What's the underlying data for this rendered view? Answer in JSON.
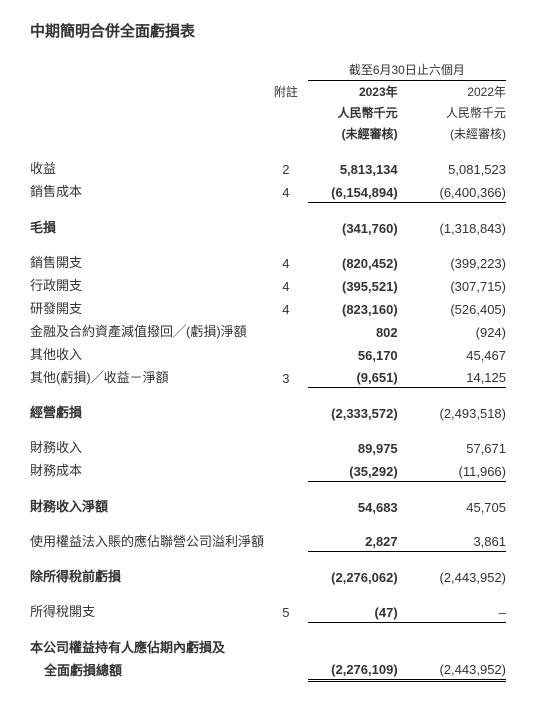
{
  "title": "中期簡明合併全面虧損表",
  "header": {
    "period_line": "截至6月30日止六個月",
    "note_label": "附註",
    "year1": "2023年",
    "year2": "2022年",
    "unit1": "人民幣千元",
    "unit2": "人民幣千元",
    "audit1": "(未經審核)",
    "audit2": "(未經審核)"
  },
  "rows": {
    "revenue": {
      "label": "收益",
      "note": "2",
      "y1": "5,813,134",
      "y2": "5,081,523"
    },
    "cost_of_sales": {
      "label": "銷售成本",
      "note": "4",
      "y1": "(6,154,894)",
      "y2": "(6,400,366)"
    },
    "gross_loss": {
      "label": "毛損",
      "note": "",
      "y1": "(341,760)",
      "y2": "(1,318,843)"
    },
    "selling_exp": {
      "label": "銷售開支",
      "note": "4",
      "y1": "(820,452)",
      "y2": "(399,223)"
    },
    "admin_exp": {
      "label": "行政開支",
      "note": "4",
      "y1": "(395,521)",
      "y2": "(307,715)"
    },
    "rd_exp": {
      "label": "研發開支",
      "note": "4",
      "y1": "(823,160)",
      "y2": "(526,405)"
    },
    "impairment": {
      "label": "金融及合約資產減值撥回╱(虧損)淨額",
      "note": "",
      "y1": "802",
      "y2": "(924)"
    },
    "other_income": {
      "label": "其他收入",
      "note": "",
      "y1": "56,170",
      "y2": "45,467"
    },
    "other_gainloss": {
      "label": "其他(虧損)╱收益－淨額",
      "note": "3",
      "y1": "(9,651)",
      "y2": "14,125"
    },
    "operating_loss": {
      "label": "經營虧損",
      "note": "",
      "y1": "(2,333,572)",
      "y2": "(2,493,518)"
    },
    "fin_income": {
      "label": "財務收入",
      "note": "",
      "y1": "89,975",
      "y2": "57,671"
    },
    "fin_cost": {
      "label": "財務成本",
      "note": "",
      "y1": "(35,292)",
      "y2": "(11,966)"
    },
    "fin_net": {
      "label": "財務收入淨額",
      "note": "",
      "y1": "54,683",
      "y2": "45,705"
    },
    "share_assoc": {
      "label": "使用權益法入賬的應佔聯營公司溢利淨額",
      "note": "",
      "y1": "2,827",
      "y2": "3,861"
    },
    "loss_before_tax": {
      "label": "除所得稅前虧損",
      "note": "",
      "y1": "(2,276,062)",
      "y2": "(2,443,952)"
    },
    "tax": {
      "label": "所得稅開支",
      "note": "5",
      "y1": "(47)",
      "y2": "–"
    },
    "total_loss_l1": {
      "label": "本公司權益持有人應佔期內虧損及"
    },
    "total_loss_l2": {
      "label": "全面虧損總額",
      "note": "",
      "y1": "(2,276,109)",
      "y2": "(2,443,952)"
    }
  }
}
